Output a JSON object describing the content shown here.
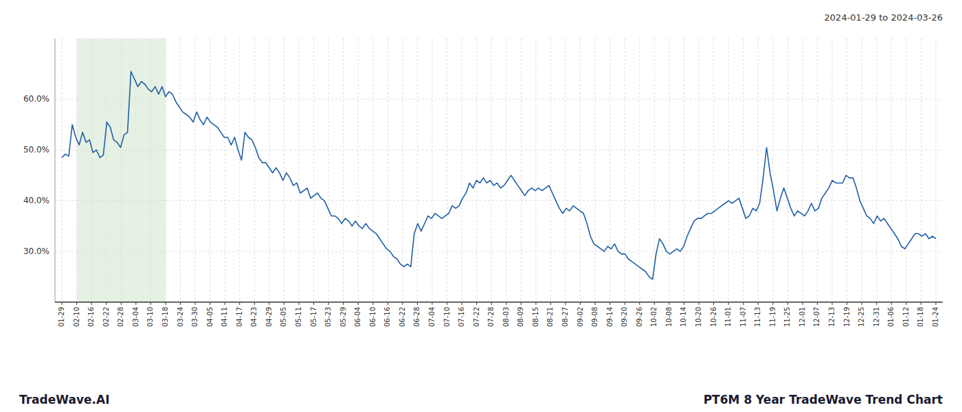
{
  "chart_data": {
    "type": "line",
    "subtitle": "2024-01-29 to 2024-03-26",
    "annotations": [
      "TradeWave.AI",
      "PT6M 8 Year TradeWave Trend Chart"
    ],
    "color": "#1f5fa6",
    "grid": true,
    "xlim": [
      -2,
      255
    ],
    "xticks": [
      {
        "value": 0,
        "label": "01-29"
      },
      {
        "value": 4.2881,
        "label": "02-10"
      },
      {
        "value": 8.5763,
        "label": "02-16"
      },
      {
        "value": 12.8644,
        "label": "02-22"
      },
      {
        "value": 17.1525,
        "label": "02-28"
      },
      {
        "value": 21.4407,
        "label": "03-04"
      },
      {
        "value": 25.7288,
        "label": "03-10"
      },
      {
        "value": 30.0169,
        "label": "03-18"
      },
      {
        "value": 34.3051,
        "label": "03-24"
      },
      {
        "value": 38.5932,
        "label": "03-30"
      },
      {
        "value": 42.8814,
        "label": "04-05"
      },
      {
        "value": 47.1695,
        "label": "04-11"
      },
      {
        "value": 51.4576,
        "label": "04-17"
      },
      {
        "value": 55.7458,
        "label": "04-23"
      },
      {
        "value": 60.0339,
        "label": "04-29"
      },
      {
        "value": 64.322,
        "label": "05-05"
      },
      {
        "value": 68.6102,
        "label": "05-11"
      },
      {
        "value": 72.8983,
        "label": "05-17"
      },
      {
        "value": 77.1864,
        "label": "05-23"
      },
      {
        "value": 81.4746,
        "label": "05-29"
      },
      {
        "value": 85.7627,
        "label": "06-04"
      },
      {
        "value": 90.0508,
        "label": "06-10"
      },
      {
        "value": 94.339,
        "label": "06-16"
      },
      {
        "value": 98.6271,
        "label": "06-22"
      },
      {
        "value": 102.9153,
        "label": "06-28"
      },
      {
        "value": 107.2034,
        "label": "07-04"
      },
      {
        "value": 111.4915,
        "label": "07-10"
      },
      {
        "value": 115.7797,
        "label": "07-16"
      },
      {
        "value": 120.0678,
        "label": "07-22"
      },
      {
        "value": 124.3559,
        "label": "07-28"
      },
      {
        "value": 128.6441,
        "label": "08-03"
      },
      {
        "value": 132.9322,
        "label": "08-09"
      },
      {
        "value": 137.2203,
        "label": "08-15"
      },
      {
        "value": 141.5085,
        "label": "08-21"
      },
      {
        "value": 145.7966,
        "label": "08-27"
      },
      {
        "value": 150.0847,
        "label": "09-02"
      },
      {
        "value": 154.3729,
        "label": "09-08"
      },
      {
        "value": 158.661,
        "label": "09-14"
      },
      {
        "value": 162.9492,
        "label": "09-20"
      },
      {
        "value": 167.2373,
        "label": "09-26"
      },
      {
        "value": 171.5254,
        "label": "10-02"
      },
      {
        "value": 175.8136,
        "label": "10-08"
      },
      {
        "value": 180.1017,
        "label": "10-14"
      },
      {
        "value": 184.3898,
        "label": "10-20"
      },
      {
        "value": 188.678,
        "label": "10-26"
      },
      {
        "value": 192.9661,
        "label": "11-01"
      },
      {
        "value": 197.2542,
        "label": "11-07"
      },
      {
        "value": 201.5424,
        "label": "11-13"
      },
      {
        "value": 205.8305,
        "label": "11-19"
      },
      {
        "value": 210.1186,
        "label": "11-25"
      },
      {
        "value": 214.4068,
        "label": "12-01"
      },
      {
        "value": 218.6949,
        "label": "12-07"
      },
      {
        "value": 222.9831,
        "label": "12-13"
      },
      {
        "value": 227.2712,
        "label": "12-19"
      },
      {
        "value": 231.5593,
        "label": "12-25"
      },
      {
        "value": 235.8475,
        "label": "12-31"
      },
      {
        "value": 240.1356,
        "label": "01-06"
      },
      {
        "value": 244.4237,
        "label": "01-12"
      },
      {
        "value": 248.7119,
        "label": "01-18"
      },
      {
        "value": 253,
        "label": "01-24"
      }
    ],
    "shaded_range": {
      "from": "02-10",
      "to": "03-18",
      "color": "#d4e8d0"
    },
    "ylim": [
      20,
      72
    ],
    "yticks": [
      {
        "value": 30.0,
        "label": "30.0%"
      },
      {
        "value": 40.0,
        "label": "40.0%"
      },
      {
        "value": 50.0,
        "label": "50.0%"
      },
      {
        "value": 60.0,
        "label": "60.0%"
      }
    ],
    "values": [
      48.5,
      49.2,
      48.8,
      55.0,
      52.5,
      51.0,
      53.5,
      51.5,
      52.0,
      49.5,
      50.0,
      48.5,
      49.0,
      55.5,
      54.5,
      52.0,
      51.5,
      50.5,
      53.0,
      53.5,
      65.5,
      64.0,
      62.5,
      63.5,
      63.0,
      62.0,
      61.5,
      62.5,
      61.0,
      62.5,
      60.5,
      61.5,
      61.0,
      59.5,
      58.5,
      57.5,
      57.0,
      56.5,
      55.5,
      57.5,
      56.0,
      55.0,
      56.5,
      55.5,
      55.0,
      54.5,
      53.5,
      52.5,
      52.5,
      51.0,
      52.5,
      50.0,
      48.0,
      53.5,
      52.5,
      52.0,
      50.5,
      48.5,
      47.5,
      47.5,
      46.5,
      45.5,
      46.5,
      45.5,
      44.0,
      45.5,
      44.5,
      43.0,
      43.5,
      41.5,
      42.0,
      42.5,
      40.5,
      41.0,
      41.5,
      40.5,
      40.0,
      38.5,
      37.0,
      37.0,
      36.5,
      35.5,
      36.5,
      36.0,
      35.0,
      36.0,
      35.0,
      34.5,
      35.5,
      34.5,
      34.0,
      33.5,
      32.5,
      31.5,
      30.5,
      30.0,
      29.0,
      28.5,
      27.5,
      27.0,
      27.5,
      27.0,
      33.5,
      35.5,
      34.0,
      35.5,
      37.0,
      36.5,
      37.5,
      37.0,
      36.5,
      37.0,
      37.5,
      39.0,
      38.5,
      39.0,
      40.5,
      41.5,
      43.5,
      42.5,
      44.0,
      43.5,
      44.5,
      43.5,
      44.0,
      43.0,
      43.5,
      42.5,
      43.0,
      44.0,
      45.0,
      44.0,
      43.0,
      42.0,
      41.0,
      42.0,
      42.5,
      42.0,
      42.5,
      42.0,
      42.5,
      43.0,
      41.5,
      40.0,
      38.5,
      37.5,
      38.5,
      38.0,
      39.0,
      38.5,
      38.0,
      37.5,
      35.5,
      33.0,
      31.5,
      31.0,
      30.5,
      30.0,
      31.0,
      30.5,
      31.5,
      30.0,
      29.5,
      29.5,
      28.5,
      28.0,
      27.5,
      27.0,
      26.5,
      26.0,
      25.0,
      24.5,
      29.5,
      32.5,
      31.5,
      30.0,
      29.5,
      30.0,
      30.5,
      30.0,
      31.0,
      33.0,
      34.5,
      36.0,
      36.5,
      36.5,
      37.0,
      37.5,
      37.5,
      38.0,
      38.5,
      39.0,
      39.5,
      40.0,
      39.5,
      40.0,
      40.5,
      38.5,
      36.5,
      37.0,
      38.5,
      38.0,
      39.5,
      44.5,
      50.5,
      45.5,
      42.0,
      38.0,
      40.5,
      42.5,
      40.5,
      38.5,
      37.0,
      38.0,
      37.5,
      37.0,
      38.0,
      39.5,
      38.0,
      38.5,
      40.5,
      41.5,
      42.5,
      44.0,
      43.5,
      43.5,
      43.5,
      45.0,
      44.5,
      44.5,
      42.5,
      40.0,
      38.5,
      37.0,
      36.5,
      35.5,
      37.0,
      36.0,
      36.5,
      35.5,
      34.5,
      33.5,
      32.5,
      31.0,
      30.5,
      31.5,
      32.5,
      33.5,
      33.5,
      33.0,
      33.5,
      32.5,
      33.0,
      32.5
    ]
  }
}
